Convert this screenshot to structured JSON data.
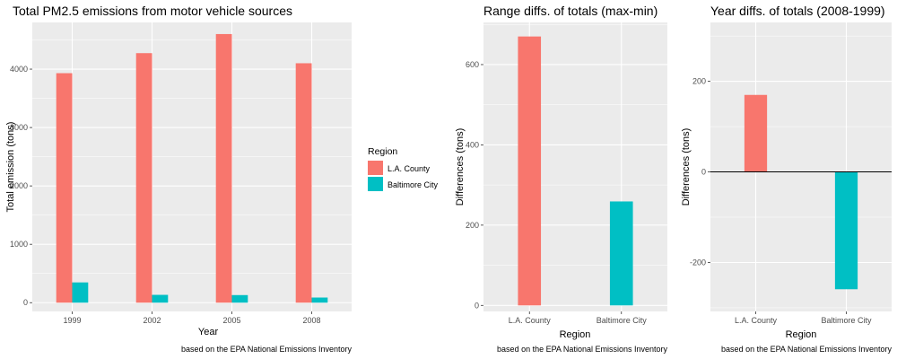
{
  "chart_data": [
    {
      "type": "bar",
      "title": "Total PM2.5 emissions from motor vehicle sources",
      "xlabel": "Year",
      "ylabel": "Total emission (tons)",
      "caption": "based on the EPA National Emissions Inventory",
      "categories": [
        "1999",
        "2002",
        "2005",
        "2008"
      ],
      "series": [
        {
          "name": "L.A. County",
          "color": "#F8766D",
          "values": [
            3931,
            4274,
            4601,
            4101
          ]
        },
        {
          "name": "Baltimore City",
          "color": "#00BFC4",
          "values": [
            347,
            134,
            130,
            88
          ]
        }
      ],
      "ylim": [
        -150,
        4800
      ],
      "yticks": [
        0,
        1000,
        2000,
        3000,
        4000
      ],
      "grid": true,
      "legend": {
        "title": "Region",
        "position": "right"
      }
    },
    {
      "type": "bar",
      "title": "Range diffs. of totals (max-min)",
      "xlabel": "Region",
      "ylabel": "Differences (tons)",
      "caption": "based on the EPA National Emissions Inventory",
      "categories": [
        "L.A. County",
        "Baltimore City"
      ],
      "values": [
        670,
        259
      ],
      "colors": [
        "#F8766D",
        "#00BFC4"
      ],
      "ylim": [
        -15,
        705
      ],
      "yticks": [
        0,
        200,
        400,
        600
      ],
      "grid": true
    },
    {
      "type": "bar",
      "title": "Year diffs. of totals (2008-1999)",
      "xlabel": "Region",
      "ylabel": "Differences (tons)",
      "caption": "based on the EPA National Emissions Inventory",
      "categories": [
        "L.A. County",
        "Baltimore City"
      ],
      "values": [
        170,
        -259
      ],
      "colors": [
        "#F8766D",
        "#00BFC4"
      ],
      "ylim": [
        -308,
        330
      ],
      "yticks": [
        -200,
        0,
        200
      ],
      "hline": 0,
      "grid": true
    }
  ]
}
